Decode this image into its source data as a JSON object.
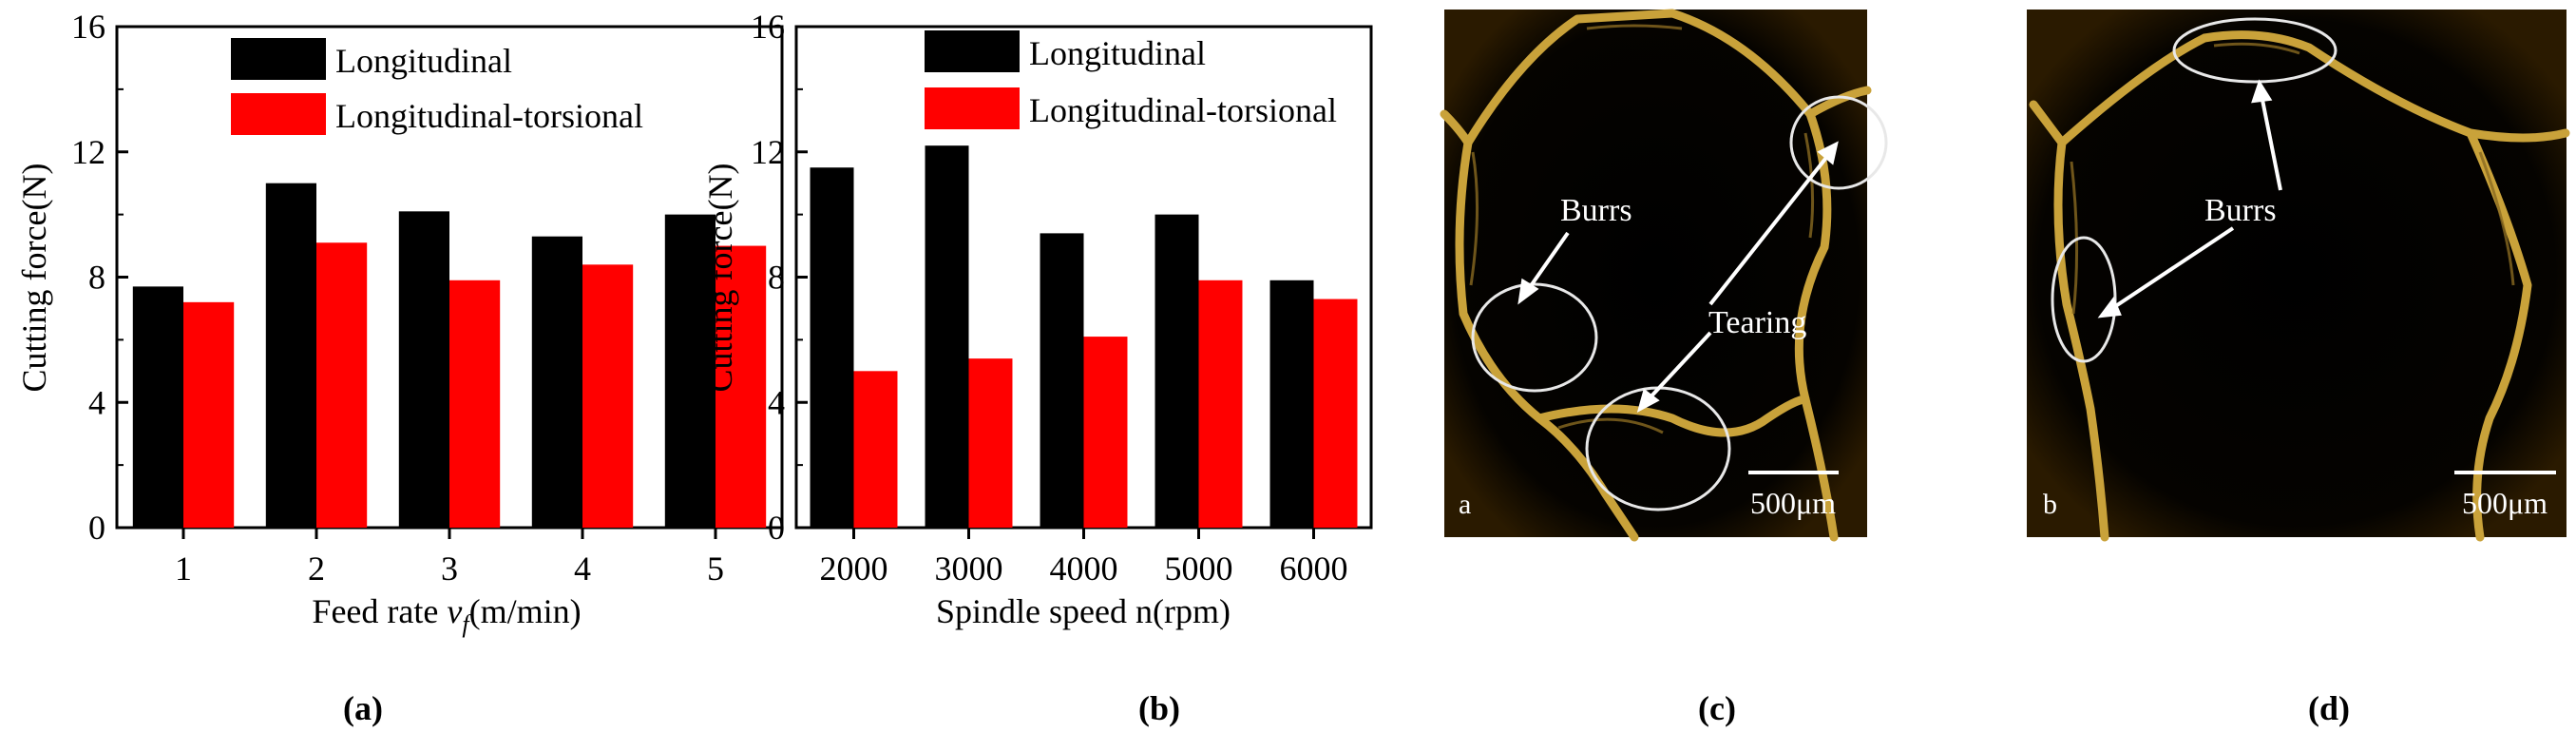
{
  "chart_data": [
    {
      "type": "bar",
      "panel": "(a)",
      "categories": [
        "1",
        "2",
        "3",
        "4",
        "5"
      ],
      "series": [
        {
          "name": "Longitudinal",
          "color": "#000000",
          "values": [
            7.7,
            11.0,
            10.1,
            9.3,
            10.0
          ]
        },
        {
          "name": "Longitudinal-torsional",
          "color": "#ff0000",
          "values": [
            7.2,
            9.1,
            7.9,
            8.4,
            9.0
          ]
        }
      ],
      "xlabel_main": "Feed rate ",
      "xlabel_var": "v",
      "xlabel_sub": "f",
      "xlabel_unit": "(m/min)",
      "ylabel": "Cutting force(N)",
      "ylim": [
        0,
        16
      ],
      "yticks": [
        "0",
        "4",
        "8",
        "12",
        "16"
      ],
      "grid": false,
      "legend_position": "top-right"
    },
    {
      "type": "bar",
      "panel": "(b)",
      "categories": [
        "2000",
        "3000",
        "4000",
        "5000",
        "6000"
      ],
      "series": [
        {
          "name": "Longitudinal",
          "color": "#000000",
          "values": [
            11.5,
            12.2,
            9.4,
            10.0,
            7.9
          ]
        },
        {
          "name": "Longitudinal-torsional",
          "color": "#ff0000",
          "values": [
            5.0,
            5.4,
            6.1,
            7.9,
            7.3
          ]
        }
      ],
      "xlabel": "Spindle speed n(rpm)",
      "ylabel": "Cutting force(N)",
      "ylim": [
        0,
        16
      ],
      "yticks": [
        "0",
        "4",
        "8",
        "12",
        "16"
      ],
      "grid": false,
      "legend_position": "top"
    }
  ],
  "micrographs": [
    {
      "panel": "(c)",
      "corner_letter": "a",
      "scale_bar": "500μm",
      "annotations": [
        "Burrs",
        "Tearing"
      ]
    },
    {
      "panel": "(d)",
      "corner_letter": "b",
      "scale_bar": "500μm",
      "annotations": [
        "Burrs"
      ]
    }
  ]
}
